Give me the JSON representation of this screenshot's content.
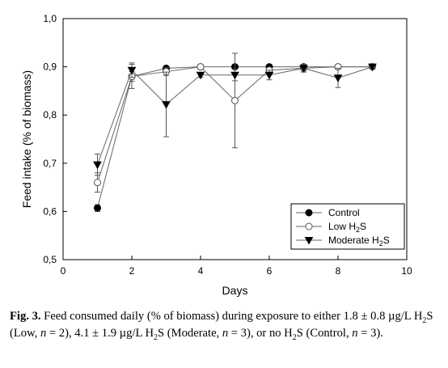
{
  "chart_data": {
    "type": "line",
    "xlabel": "Days",
    "ylabel": "Feed intake (% of biomass)",
    "xlim": [
      0,
      10
    ],
    "ylim": [
      0.5,
      1.0
    ],
    "x_ticks": [
      "0",
      "2",
      "4",
      "6",
      "8",
      "10"
    ],
    "y_ticks": [
      "0,5",
      "0,6",
      "0,7",
      "0,8",
      "0,9",
      "1,0"
    ],
    "grid": false,
    "legend_position": "bottom-right",
    "series": [
      {
        "name": "Control",
        "marker": "filled-circle",
        "x": [
          1,
          2,
          3,
          4,
          5,
          6,
          7,
          8,
          9
        ],
        "y": [
          0.607,
          0.88,
          0.897,
          0.9,
          0.9,
          0.9,
          0.9,
          0.9,
          0.9
        ],
        "error": [
          0.007,
          0.01,
          0.003,
          0.0,
          0.0,
          0.0,
          0.0,
          0.0,
          0.0
        ]
      },
      {
        "name": "Low H",
        "name_sub": "2",
        "name_suffix": "S",
        "marker": "open-circle",
        "x": [
          1,
          2,
          3,
          4,
          5,
          6,
          7,
          8,
          9
        ],
        "y": [
          0.66,
          0.88,
          0.89,
          0.9,
          0.83,
          0.893,
          0.897,
          0.9,
          0.9
        ],
        "error": [
          0.02,
          0.025,
          0.008,
          0.0,
          0.098,
          0.005,
          0.008,
          0.0,
          0.0
        ]
      },
      {
        "name": "Moderate H",
        "name_sub": "2",
        "name_suffix": "S",
        "marker": "filled-triangle-down",
        "x": [
          1,
          2,
          3,
          4,
          5,
          6,
          7,
          8,
          9
        ],
        "y": [
          0.697,
          0.893,
          0.822,
          0.883,
          0.883,
          0.883,
          0.897,
          0.877,
          0.9
        ],
        "error": [
          0.022,
          0.015,
          0.067,
          0.005,
          0.012,
          0.01,
          0.005,
          0.02,
          0.003
        ]
      }
    ]
  },
  "caption": {
    "fig_label": "Fig. 3.",
    "p1": " Feed consumed daily (% of biomass) during exposure to either 1.8 ± 0.8 µg/L H",
    "sub1": "2",
    "p2": "S (Low, ",
    "n1": "n",
    "p3": " = 2), 4.1 ± 1.9 µg/L H",
    "sub2": "2",
    "p4": "S (Moderate, ",
    "n2": "n",
    "p5": " = 3), or no H",
    "sub3": "2",
    "p6": "S (Control, ",
    "n3": "n",
    "p7": " = 3)."
  }
}
